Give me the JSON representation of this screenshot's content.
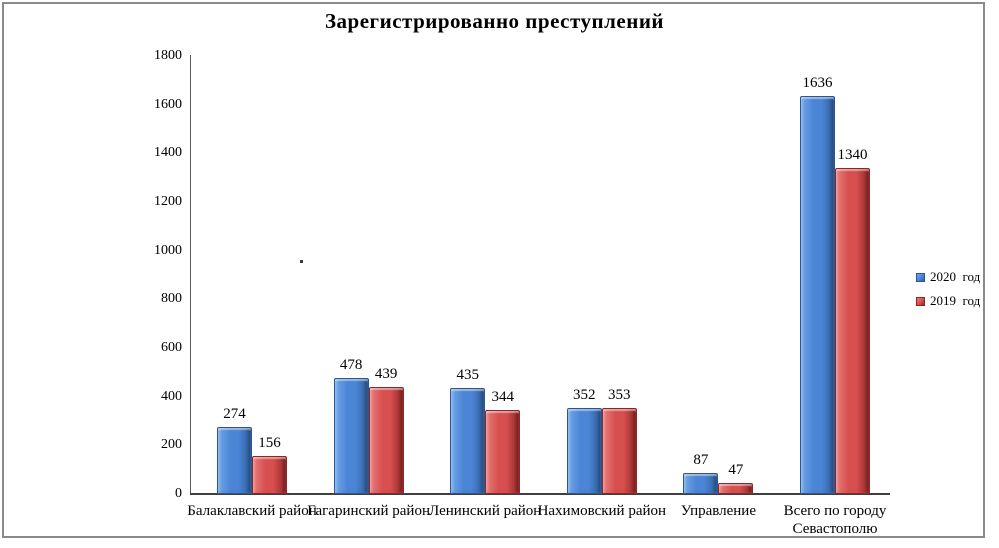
{
  "chart_data": {
    "type": "bar",
    "title": "Зарегистрированно преступлений",
    "categories": [
      "Балаклавский район",
      "Гагаринский район",
      "Ленинский район",
      "Нахимовский район",
      "Управление",
      "Всего по городу Севастополю"
    ],
    "series": [
      {
        "name": "2020  год",
        "values": [
          274,
          478,
          435,
          352,
          87,
          1636
        ],
        "colors": {
          "main": "#4b85d6",
          "light": "#6fa6e8",
          "dark": "#2f5e9e",
          "border": "#2a5694"
        }
      },
      {
        "name": "2019  год",
        "values": [
          156,
          439,
          344,
          353,
          47,
          1340
        ],
        "colors": {
          "main": "#d84f4f",
          "light": "#e87c7c",
          "dark": "#932727",
          "border": "#8f2525"
        }
      }
    ],
    "ylim": [
      0,
      1800
    ],
    "ytick_step": 200,
    "grid": false,
    "legend_position": "right",
    "bar_labels_shown": true,
    "annotation_dot": "."
  },
  "frame": {
    "border_color": "#8a8a8a"
  },
  "axis": {
    "y_line_color": "#595959",
    "x_line_color": "#3f3f3f",
    "label_color": "#000000"
  }
}
